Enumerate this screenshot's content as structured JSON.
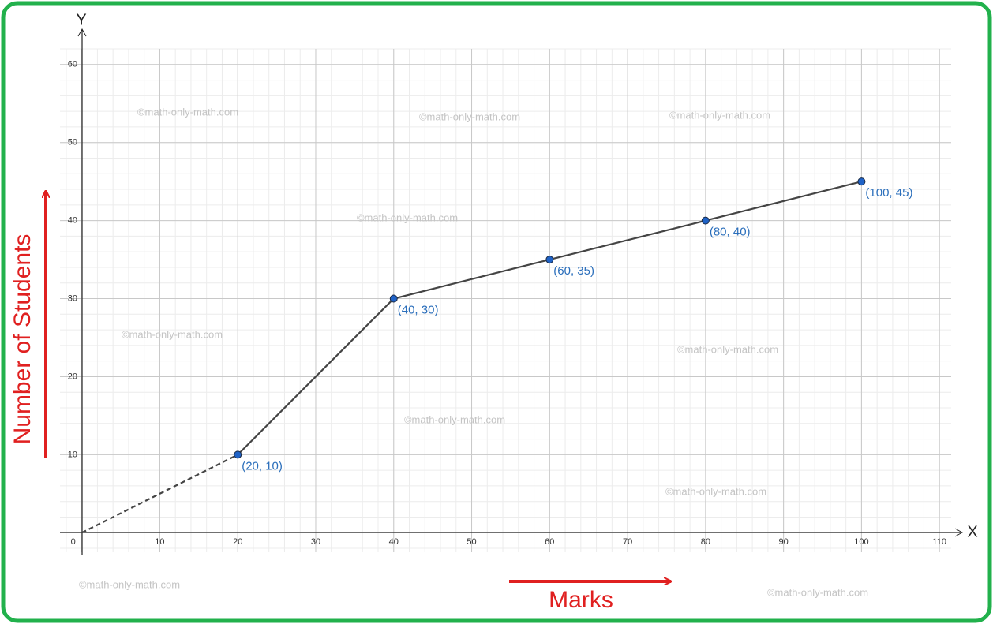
{
  "chart_data": {
    "type": "line",
    "x_label": "Marks",
    "y_label": "Number of Students",
    "x_axis_name": "X",
    "y_axis_name": "Y",
    "series": [
      {
        "color": "#444444",
        "style": "dashed",
        "markers": false,
        "x": [
          0,
          20
        ],
        "values": [
          0,
          10
        ]
      },
      {
        "color": "#444444",
        "style": "solid",
        "markers": true,
        "marker_color": "#1f62c6",
        "x": [
          20,
          40,
          60,
          80,
          100
        ],
        "values": [
          10,
          30,
          35,
          40,
          45
        ],
        "value_labels": [
          "(20, 10)",
          "(40, 30)",
          "(60, 35)",
          "(80, 40)",
          "(100, 45)"
        ]
      }
    ],
    "xlim": [
      -2.8,
      111.5
    ],
    "ylim": [
      -2.5,
      62
    ],
    "xticks": [
      0,
      10,
      20,
      30,
      40,
      50,
      60,
      70,
      80,
      90,
      100,
      110
    ],
    "yticks": [
      10,
      20,
      30,
      40,
      50,
      60
    ],
    "grid": true,
    "minor_grid_step": 2,
    "watermarks": [
      "©math-only-math.com",
      "©math-only-math.com",
      "©math-only-math.com",
      "©math-only-math.com",
      "©math-only-math.com",
      "©math-only-math.com",
      "©math-only-math.com",
      "©math-only-math.com",
      "©math-only-math.com",
      "©math-only-math.com"
    ]
  }
}
